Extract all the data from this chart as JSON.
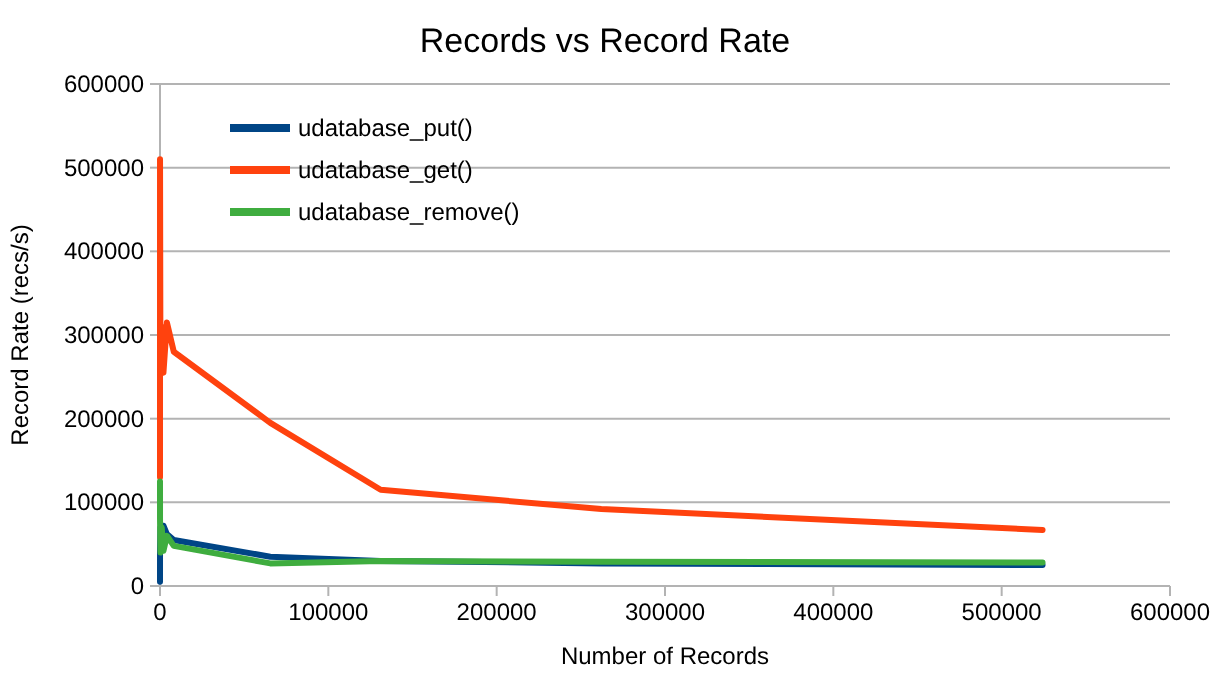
{
  "chart_data": {
    "type": "line",
    "title": "Records vs Record Rate",
    "xlabel": "Number of Records",
    "ylabel": "Record Rate (recs/s)",
    "x": [
      1,
      16,
      256,
      1024,
      2048,
      4096,
      8192,
      65536,
      131072,
      262144,
      524288
    ],
    "xlim": [
      0,
      600000
    ],
    "ylim": [
      0,
      600000
    ],
    "xticks": [
      0,
      100000,
      200000,
      300000,
      400000,
      500000,
      600000
    ],
    "yticks": [
      0,
      100000,
      200000,
      300000,
      400000,
      500000,
      600000
    ],
    "grid": "y",
    "legend": "top left",
    "line_style": "solid",
    "series": [
      {
        "name": "udatabase_put()",
        "color": "#004586",
        "values": [
          5000,
          40000,
          70000,
          60000,
          72000,
          62000,
          55000,
          35000,
          30000,
          27000,
          25000
        ]
      },
      {
        "name": "udatabase_get()",
        "color": "#ff420e",
        "values": [
          130000,
          510000,
          260000,
          310000,
          255000,
          315000,
          280000,
          195000,
          115000,
          92000,
          67000
        ]
      },
      {
        "name": "udatabase_remove()",
        "color": "#3fad3f",
        "values": [
          125000,
          80000,
          40000,
          70000,
          42000,
          60000,
          48000,
          27000,
          30000,
          29000,
          28000
        ]
      }
    ]
  }
}
